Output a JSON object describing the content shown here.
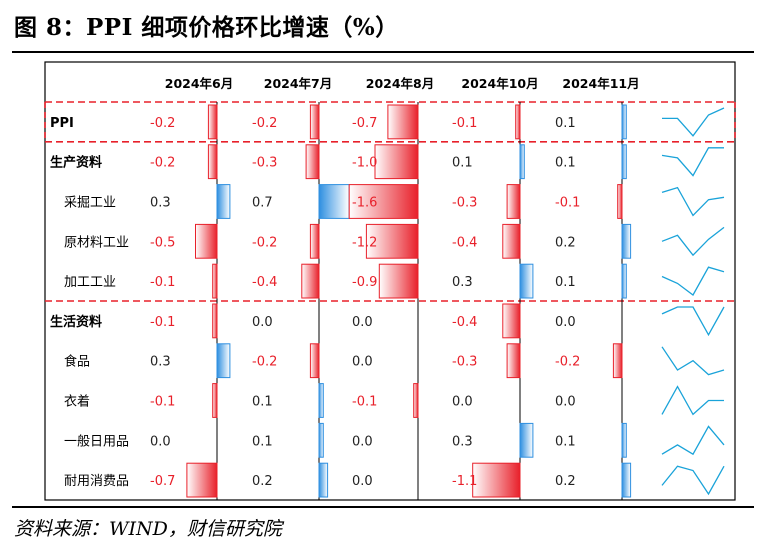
{
  "title": "图 8：PPI 细项价格环比增速（%）",
  "source": "资料来源：WIND，财信研究院",
  "columns": [
    "2024年6月",
    "2024年7月",
    "2024年8月",
    "2024年10月",
    "2024年11月"
  ],
  "colors": {
    "negative_bar": "#e8202a",
    "positive_bar": "#2e8fe0",
    "sparkline": "#1aa3d9",
    "negative_text": "#e8202a",
    "dashed_rule": "#e8202a"
  },
  "rows": [
    {
      "label": "PPI",
      "level": 0,
      "bold": true,
      "values": [
        "-0.2",
        "-0.2",
        "-0.7",
        "-0.1",
        "0.1"
      ]
    },
    {
      "label": "生产资料",
      "level": 0,
      "bold": true,
      "values": [
        "-0.2",
        "-0.3",
        "-1.0",
        "0.1",
        "0.1"
      ]
    },
    {
      "label": "采掘工业",
      "level": 1,
      "bold": false,
      "values": [
        "0.3",
        "0.7",
        "-1.6",
        "-0.3",
        "-0.1"
      ]
    },
    {
      "label": "原材料工业",
      "level": 1,
      "bold": false,
      "values": [
        "-0.5",
        "-0.2",
        "-1.2",
        "-0.4",
        "0.2"
      ]
    },
    {
      "label": "加工工业",
      "level": 1,
      "bold": false,
      "values": [
        "-0.1",
        "-0.4",
        "-0.9",
        "0.3",
        "0.1"
      ]
    },
    {
      "label": "生活资料",
      "level": 0,
      "bold": true,
      "values": [
        "-0.1",
        "0.0",
        "0.0",
        "-0.4",
        "0.0"
      ]
    },
    {
      "label": "食品",
      "level": 1,
      "bold": false,
      "values": [
        "0.3",
        "-0.2",
        "0.0",
        "-0.3",
        "-0.2"
      ]
    },
    {
      "label": "衣着",
      "level": 1,
      "bold": false,
      "values": [
        "-0.1",
        "0.1",
        "-0.1",
        "0.0",
        "0.0"
      ]
    },
    {
      "label": "一般日用品",
      "level": 1,
      "bold": false,
      "values": [
        "0.0",
        "0.1",
        "0.0",
        "0.3",
        "0.1"
      ]
    },
    {
      "label": "耐用消费品",
      "level": 1,
      "bold": false,
      "values": [
        "-0.7",
        "0.2",
        "0.0",
        "-1.1",
        "0.2"
      ]
    }
  ]
}
